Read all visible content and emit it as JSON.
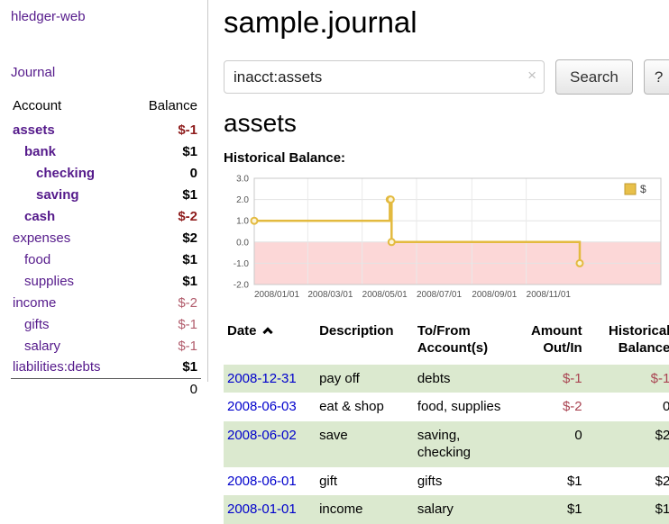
{
  "colors": {
    "link_purple": "#551a8b",
    "date_link_blue": "#0000cc",
    "negative_strong": "#8f1d1d",
    "negative_soft": "#b25d6d",
    "table_negative": "#a94452",
    "row_green": "#dbe9cf",
    "chart_line": "#e3ba3f",
    "chart_fill_negative": "#fcd7d7"
  },
  "sidebar": {
    "app_title": "hledger-web",
    "journal_link": "Journal",
    "accounts": {
      "headers": {
        "account": "Account",
        "balance": "Balance"
      },
      "rows": [
        {
          "name": "assets",
          "balance": "$-1",
          "indent": 0,
          "bold": true,
          "neg": "strong"
        },
        {
          "name": "bank",
          "balance": "$1",
          "indent": 1,
          "bold": true,
          "neg": "none"
        },
        {
          "name": "checking",
          "balance": "0",
          "indent": 2,
          "bold": true,
          "neg": "none"
        },
        {
          "name": "saving",
          "balance": "$1",
          "indent": 2,
          "bold": true,
          "neg": "none"
        },
        {
          "name": "cash",
          "balance": "$-2",
          "indent": 1,
          "bold": true,
          "neg": "strong"
        },
        {
          "name": "expenses",
          "balance": "$2",
          "indent": 0,
          "bold": false,
          "neg": "none"
        },
        {
          "name": "food",
          "balance": "$1",
          "indent": 1,
          "bold": false,
          "neg": "none"
        },
        {
          "name": "supplies",
          "balance": "$1",
          "indent": 1,
          "bold": false,
          "neg": "none"
        },
        {
          "name": "income",
          "balance": "$-2",
          "indent": 0,
          "bold": false,
          "neg": "soft"
        },
        {
          "name": "gifts",
          "balance": "$-1",
          "indent": 1,
          "bold": false,
          "neg": "soft"
        },
        {
          "name": "salary",
          "balance": "$-1",
          "indent": 1,
          "bold": false,
          "neg": "soft"
        },
        {
          "name": "liabilities:debts",
          "balance": "$1",
          "indent": 0,
          "bold": false,
          "neg": "none"
        }
      ],
      "total": "0"
    }
  },
  "main": {
    "title": "sample.journal",
    "search": {
      "value": "inacct:assets",
      "clear_icon": "×",
      "button_label": "Search",
      "help_label": "?"
    },
    "account_heading": "assets",
    "chart_title": "Historical Balance:"
  },
  "chart_data": {
    "type": "line",
    "step": true,
    "title": "Historical Balance",
    "series": [
      {
        "name": "$",
        "points": [
          {
            "date": "2008-01-01",
            "value": 1
          },
          {
            "date": "2008-06-01",
            "value": 2
          },
          {
            "date": "2008-06-02",
            "value": 2
          },
          {
            "date": "2008-06-03",
            "value": 0
          },
          {
            "date": "2008-12-31",
            "value": -1
          }
        ]
      }
    ],
    "ylim": [
      -2,
      3
    ],
    "y_ticks": [
      -2,
      -1,
      0,
      1,
      2,
      3
    ],
    "y_tick_labels": [
      "-2.0",
      "-1.0",
      "0.0",
      "1.0",
      "2.0",
      "3.0"
    ],
    "x_tick_labels": [
      "2008/01/01",
      "2008/03/01",
      "2008/05/01",
      "2008/07/01",
      "2008/09/01",
      "2008/11/01"
    ],
    "x_domain": [
      "2008-01-01",
      "2009-04-01"
    ],
    "grid": true,
    "legend": {
      "label": "$",
      "position": "top-right"
    },
    "negative_region_shaded": true
  },
  "register": {
    "headers": {
      "date": "Date",
      "description": "Description",
      "account": "To/From Account(s)",
      "amount": "Amount Out/In",
      "balance": "Historical Balance"
    },
    "rows": [
      {
        "date": "2008-12-31",
        "description": "pay off",
        "account": "debts",
        "amount": "$-1",
        "balance": "$-1",
        "amount_neg": true,
        "balance_neg": true
      },
      {
        "date": "2008-06-03",
        "description": "eat & shop",
        "account": "food, supplies",
        "amount": "$-2",
        "balance": "0",
        "amount_neg": true,
        "balance_neg": false
      },
      {
        "date": "2008-06-02",
        "description": "save",
        "account": "saving, checking",
        "amount": "0",
        "balance": "$2",
        "amount_neg": false,
        "balance_neg": false
      },
      {
        "date": "2008-06-01",
        "description": "gift",
        "account": "gifts",
        "amount": "$1",
        "balance": "$2",
        "amount_neg": false,
        "balance_neg": false
      },
      {
        "date": "2008-01-01",
        "description": "income",
        "account": "salary",
        "amount": "$1",
        "balance": "$1",
        "amount_neg": false,
        "balance_neg": false
      }
    ]
  }
}
